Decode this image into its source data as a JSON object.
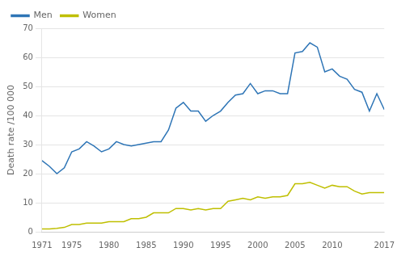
{
  "chart_data": {
    "type": "line",
    "ylabel": "Death rate /100 000",
    "x": [
      1971,
      1972,
      1973,
      1974,
      1975,
      1976,
      1977,
      1978,
      1979,
      1980,
      1981,
      1982,
      1983,
      1984,
      1985,
      1986,
      1987,
      1988,
      1989,
      1990,
      1991,
      1992,
      1993,
      1994,
      1995,
      1996,
      1997,
      1998,
      1999,
      2000,
      2001,
      2002,
      2003,
      2004,
      2005,
      2006,
      2007,
      2008,
      2009,
      2010,
      2011,
      2012,
      2013,
      2014,
      2015,
      2016,
      2017
    ],
    "series": [
      {
        "name": "Men",
        "color": "#2E75B6",
        "values": [
          24.5,
          22.5,
          20.0,
          22.0,
          27.5,
          28.5,
          31.0,
          29.5,
          27.5,
          28.5,
          31.0,
          30.0,
          29.5,
          30.0,
          30.5,
          31.0,
          31.0,
          35.0,
          42.5,
          44.5,
          41.5,
          41.5,
          38.0,
          40.0,
          41.5,
          44.5,
          47.0,
          47.5,
          51.0,
          47.5,
          48.5,
          48.5,
          47.5,
          47.5,
          61.5,
          62.0,
          65.0,
          63.5,
          55.0,
          56.0,
          53.5,
          52.5,
          49.0,
          48.0,
          41.5,
          47.5,
          42.0
        ]
      },
      {
        "name": "Women",
        "color": "#BFBF00",
        "values": [
          1.0,
          1.0,
          1.2,
          1.5,
          2.5,
          2.5,
          3.0,
          3.0,
          3.0,
          3.5,
          3.5,
          3.5,
          4.5,
          4.5,
          5.0,
          6.5,
          6.5,
          6.5,
          8.0,
          8.0,
          7.5,
          8.0,
          7.5,
          8.0,
          8.0,
          10.5,
          11.0,
          11.5,
          11.0,
          12.0,
          11.5,
          12.0,
          12.0,
          12.5,
          16.5,
          16.5,
          17.0,
          16.0,
          15.0,
          16.0,
          15.5,
          15.5,
          14.0,
          13.0,
          13.5,
          13.5,
          13.5
        ]
      }
    ],
    "xlim": [
      1971,
      2017
    ],
    "xticks": [
      1971,
      1975,
      1980,
      1985,
      1990,
      1995,
      2000,
      2005,
      2010,
      2017
    ],
    "ylim": [
      0,
      70
    ],
    "yticks": [
      0,
      10,
      20,
      30,
      40,
      50,
      60,
      70
    ],
    "grid": "y",
    "legend": "upper left"
  }
}
